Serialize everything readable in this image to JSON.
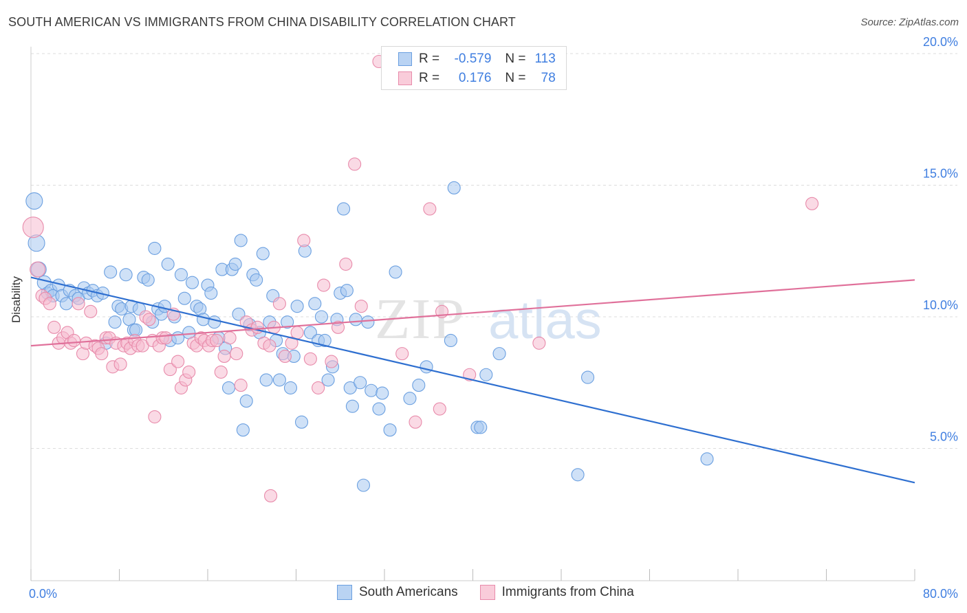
{
  "title": "SOUTH AMERICAN VS IMMIGRANTS FROM CHINA DISABILITY CORRELATION CHART",
  "source": "Source: ZipAtlas.com",
  "watermark": {
    "zip": "ZIP",
    "atlas": "atlas"
  },
  "legend_stats": [
    {
      "r_label": "R =",
      "r_value": "-0.579",
      "n_label": "N =",
      "n_value": "113"
    },
    {
      "r_label": "R =",
      "r_value": "0.176",
      "n_label": "N =",
      "n_value": "78"
    }
  ],
  "colors": {
    "blue_fill": "#a8c8f0",
    "blue_stroke": "#6a9fe0",
    "blue_line": "#2e6fd0",
    "pink_fill": "#f6bcd0",
    "pink_stroke": "#e88aaa",
    "pink_line": "#e0709a",
    "tick_text": "#3f7ee0",
    "grid": "#dcdcdc"
  },
  "chart_data": {
    "type": "scatter",
    "title": "SOUTH AMERICAN VS IMMIGRANTS FROM CHINA DISABILITY CORRELATION CHART",
    "xlabel": "",
    "ylabel": "Disability",
    "xlim": [
      0,
      80
    ],
    "ylim": [
      0,
      20.5
    ],
    "x_tick_labels": [
      "0.0%",
      "80.0%"
    ],
    "y_ticks": [
      5,
      10,
      15,
      20
    ],
    "y_tick_labels": [
      "5.0%",
      "10.0%",
      "15.0%",
      "20.0%"
    ],
    "grid": "horizontal dashed",
    "legend_position": "bottom-center",
    "series": [
      {
        "name": "South Americans",
        "trend": {
          "x": [
            0,
            80
          ],
          "y": [
            11.5,
            3.7
          ]
        },
        "points": [
          [
            0.3,
            14.4,
            12
          ],
          [
            0.5,
            12.8,
            12
          ],
          [
            0.7,
            11.8,
            11
          ],
          [
            1.2,
            11.3,
            10
          ],
          [
            1.5,
            10.9,
            9
          ],
          [
            1.8,
            11.0,
            9
          ],
          [
            2.0,
            10.8,
            9
          ],
          [
            2.5,
            11.2,
            9
          ],
          [
            2.8,
            10.8,
            9
          ],
          [
            3.2,
            10.5,
            9
          ],
          [
            3.5,
            11.0,
            9
          ],
          [
            4.0,
            10.8,
            9
          ],
          [
            4.3,
            10.7,
            9
          ],
          [
            4.8,
            11.1,
            9
          ],
          [
            5.2,
            10.9,
            9
          ],
          [
            5.6,
            11.0,
            9
          ],
          [
            6.0,
            10.8,
            9
          ],
          [
            6.5,
            10.9,
            9
          ],
          [
            6.8,
            9.0,
            9
          ],
          [
            7.2,
            11.7,
            9
          ],
          [
            7.6,
            9.8,
            9
          ],
          [
            7.9,
            10.4,
            9
          ],
          [
            8.2,
            10.3,
            9
          ],
          [
            8.6,
            11.6,
            9
          ],
          [
            8.9,
            9.9,
            9
          ],
          [
            9.1,
            10.4,
            9
          ],
          [
            9.3,
            9.5,
            9
          ],
          [
            9.5,
            9.5,
            9
          ],
          [
            9.8,
            10.3,
            9
          ],
          [
            10.2,
            11.5,
            9
          ],
          [
            10.6,
            11.4,
            9
          ],
          [
            11.0,
            9.8,
            9
          ],
          [
            11.2,
            12.6,
            9
          ],
          [
            11.5,
            10.3,
            9
          ],
          [
            11.8,
            10.1,
            9
          ],
          [
            12.1,
            10.4,
            9
          ],
          [
            12.4,
            12.0,
            9
          ],
          [
            12.6,
            9.1,
            9
          ],
          [
            13.0,
            10.0,
            9
          ],
          [
            13.3,
            9.2,
            9
          ],
          [
            13.6,
            11.6,
            9
          ],
          [
            13.9,
            10.7,
            9
          ],
          [
            14.3,
            9.4,
            9
          ],
          [
            14.6,
            11.3,
            9
          ],
          [
            15.0,
            10.4,
            9
          ],
          [
            15.3,
            10.3,
            9
          ],
          [
            15.6,
            9.9,
            9
          ],
          [
            16.0,
            11.2,
            9
          ],
          [
            16.3,
            10.9,
            9
          ],
          [
            16.6,
            9.8,
            9
          ],
          [
            17.0,
            9.2,
            9
          ],
          [
            17.3,
            11.8,
            9
          ],
          [
            17.6,
            8.8,
            9
          ],
          [
            17.9,
            7.3,
            9
          ],
          [
            18.2,
            11.8,
            9
          ],
          [
            18.5,
            12.0,
            9
          ],
          [
            18.8,
            10.1,
            9
          ],
          [
            19.0,
            12.9,
            9
          ],
          [
            19.2,
            5.7,
            9
          ],
          [
            19.5,
            6.8,
            9
          ],
          [
            19.8,
            9.7,
            9
          ],
          [
            20.1,
            11.6,
            9
          ],
          [
            20.4,
            11.4,
            9
          ],
          [
            20.7,
            9.4,
            9
          ],
          [
            21.0,
            12.4,
            9
          ],
          [
            21.3,
            7.6,
            9
          ],
          [
            21.6,
            9.8,
            9
          ],
          [
            21.9,
            10.8,
            9
          ],
          [
            22.2,
            9.1,
            9
          ],
          [
            22.5,
            7.6,
            9
          ],
          [
            22.8,
            8.6,
            9
          ],
          [
            23.2,
            9.8,
            9
          ],
          [
            23.5,
            7.3,
            9
          ],
          [
            23.8,
            8.5,
            9
          ],
          [
            24.1,
            10.4,
            9
          ],
          [
            24.5,
            6.0,
            9
          ],
          [
            24.8,
            12.5,
            9
          ],
          [
            25.3,
            9.4,
            9
          ],
          [
            25.7,
            10.5,
            9
          ],
          [
            26.0,
            9.1,
            9
          ],
          [
            26.3,
            10.0,
            9
          ],
          [
            26.6,
            9.1,
            9
          ],
          [
            26.9,
            7.6,
            9
          ],
          [
            27.3,
            8.1,
            9
          ],
          [
            27.7,
            9.9,
            9
          ],
          [
            28.0,
            10.9,
            9
          ],
          [
            28.3,
            14.1,
            9
          ],
          [
            28.6,
            11.0,
            9
          ],
          [
            28.9,
            7.3,
            9
          ],
          [
            29.1,
            6.6,
            9
          ],
          [
            29.4,
            9.9,
            9
          ],
          [
            29.8,
            7.5,
            9
          ],
          [
            30.1,
            3.6,
            9
          ],
          [
            30.5,
            9.8,
            9
          ],
          [
            30.8,
            7.2,
            9
          ],
          [
            31.5,
            6.5,
            9
          ],
          [
            31.8,
            7.1,
            9
          ],
          [
            32.5,
            5.7,
            9
          ],
          [
            33.0,
            11.7,
            9
          ],
          [
            34.3,
            6.9,
            9
          ],
          [
            35.1,
            7.4,
            9
          ],
          [
            35.8,
            8.1,
            9
          ],
          [
            38.0,
            9.1,
            9
          ],
          [
            38.3,
            14.9,
            9
          ],
          [
            40.4,
            5.8,
            9
          ],
          [
            40.7,
            5.8,
            9
          ],
          [
            41.2,
            7.8,
            9
          ],
          [
            42.4,
            8.6,
            9
          ],
          [
            49.5,
            4.0,
            9
          ],
          [
            50.4,
            7.7,
            9
          ],
          [
            61.2,
            4.6,
            9
          ]
        ]
      },
      {
        "name": "Immigrants from China",
        "trend": {
          "x": [
            0,
            80
          ],
          "y": [
            8.9,
            11.4
          ]
        },
        "points": [
          [
            0.2,
            13.4,
            15
          ],
          [
            0.6,
            11.8,
            11
          ],
          [
            1.0,
            10.8,
            9
          ],
          [
            1.3,
            10.7,
            9
          ],
          [
            1.7,
            10.5,
            9
          ],
          [
            2.1,
            9.6,
            9
          ],
          [
            2.5,
            9.0,
            9
          ],
          [
            2.9,
            9.2,
            9
          ],
          [
            3.3,
            9.4,
            9
          ],
          [
            3.6,
            9.0,
            9
          ],
          [
            3.9,
            9.1,
            9
          ],
          [
            4.3,
            10.5,
            9
          ],
          [
            4.7,
            8.6,
            9
          ],
          [
            5.0,
            9.0,
            9
          ],
          [
            5.4,
            10.2,
            9
          ],
          [
            5.8,
            8.9,
            9
          ],
          [
            6.1,
            8.8,
            9
          ],
          [
            6.4,
            8.6,
            9
          ],
          [
            6.8,
            9.2,
            9
          ],
          [
            7.1,
            9.2,
            9
          ],
          [
            7.4,
            8.1,
            9
          ],
          [
            7.7,
            9.0,
            9
          ],
          [
            8.1,
            8.2,
            9
          ],
          [
            8.4,
            8.9,
            9
          ],
          [
            8.7,
            9.0,
            9
          ],
          [
            9.0,
            8.8,
            9
          ],
          [
            9.4,
            9.1,
            9
          ],
          [
            9.7,
            8.9,
            9
          ],
          [
            10.1,
            8.9,
            9
          ],
          [
            10.4,
            10.0,
            9
          ],
          [
            10.7,
            9.9,
            9
          ],
          [
            11.0,
            9.1,
            9
          ],
          [
            11.2,
            6.2,
            9
          ],
          [
            11.6,
            8.9,
            9
          ],
          [
            11.9,
            9.2,
            9
          ],
          [
            12.2,
            9.2,
            9
          ],
          [
            12.6,
            8.0,
            9
          ],
          [
            12.9,
            10.1,
            9
          ],
          [
            13.3,
            8.3,
            9
          ],
          [
            13.6,
            7.3,
            9
          ],
          [
            14.0,
            7.6,
            9
          ],
          [
            14.3,
            7.9,
            9
          ],
          [
            14.7,
            9.0,
            9
          ],
          [
            15.0,
            8.9,
            9
          ],
          [
            15.4,
            9.2,
            9
          ],
          [
            15.7,
            9.1,
            9
          ],
          [
            16.1,
            8.9,
            9
          ],
          [
            16.4,
            9.1,
            9
          ],
          [
            16.8,
            9.1,
            9
          ],
          [
            17.2,
            7.9,
            9
          ],
          [
            17.5,
            8.5,
            9
          ],
          [
            18.0,
            9.2,
            9
          ],
          [
            18.6,
            8.6,
            9
          ],
          [
            19.0,
            7.4,
            9
          ],
          [
            19.5,
            9.8,
            9
          ],
          [
            20.0,
            9.5,
            9
          ],
          [
            20.5,
            9.6,
            9
          ],
          [
            21.1,
            9.0,
            9
          ],
          [
            21.6,
            8.9,
            9
          ],
          [
            22.0,
            9.6,
            9
          ],
          [
            22.5,
            10.5,
            9
          ],
          [
            23.0,
            8.5,
            9
          ],
          [
            23.6,
            9.0,
            9
          ],
          [
            24.1,
            9.4,
            9
          ],
          [
            24.7,
            12.9,
            9
          ],
          [
            25.3,
            8.4,
            9
          ],
          [
            26.0,
            7.3,
            9
          ],
          [
            26.5,
            11.2,
            9
          ],
          [
            27.2,
            8.3,
            9
          ],
          [
            27.8,
            9.6,
            9
          ],
          [
            28.5,
            12.0,
            9
          ],
          [
            29.3,
            15.8,
            9
          ],
          [
            29.9,
            10.4,
            9
          ],
          [
            31.5,
            19.7,
            9
          ],
          [
            33.6,
            8.6,
            9
          ],
          [
            34.8,
            6.0,
            9
          ],
          [
            36.1,
            14.1,
            9
          ],
          [
            37.0,
            6.5,
            9
          ],
          [
            37.2,
            10.2,
            9
          ],
          [
            39.7,
            7.8,
            9
          ],
          [
            46.0,
            9.0,
            9
          ],
          [
            70.7,
            14.3,
            9
          ],
          [
            21.7,
            3.2,
            9
          ]
        ]
      }
    ]
  }
}
